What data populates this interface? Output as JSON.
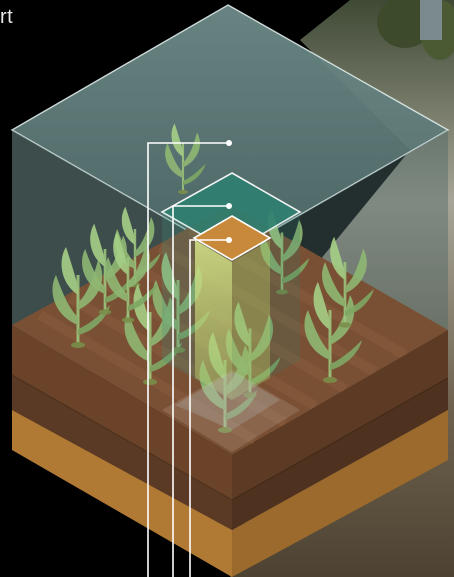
{
  "header": {
    "caption_fragment": "rt"
  },
  "colors": {
    "sky_volume": "#5f7d7b",
    "sky_volume_edge": "#d9e6e4",
    "canopy_volume": "#2f7f70",
    "stem_column": "#cfe07a",
    "root_zone": "#c9893a",
    "soil_top": "#7a5034",
    "soil_mid": "#6a4329",
    "soil_deep": "#b07a35",
    "plant_leaf": "#8fb873",
    "field_background": "#8c8c78",
    "leader_line": "#ffffff"
  },
  "icons": {
    "plant_icon": "corn-seedling-icon",
    "marker_icon": "leader-dot-icon"
  },
  "layers": [
    {
      "name": "atmosphere-volume"
    },
    {
      "name": "canopy-volume"
    },
    {
      "name": "root-zone-volume"
    },
    {
      "name": "topsoil-layer"
    },
    {
      "name": "subsoil-layer"
    },
    {
      "name": "bedrock-layer"
    }
  ],
  "callouts": [
    {
      "name": "callout-atmosphere"
    },
    {
      "name": "callout-canopy"
    },
    {
      "name": "callout-root-zone"
    }
  ]
}
